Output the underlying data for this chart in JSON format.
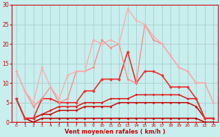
{
  "xlabel": "Vent moyen/en rafales ( km/h )",
  "xlim": [
    -0.5,
    23.5
  ],
  "ylim": [
    0,
    30
  ],
  "yticks": [
    0,
    5,
    10,
    15,
    20,
    25,
    30
  ],
  "xticks": [
    0,
    1,
    2,
    3,
    4,
    5,
    6,
    7,
    8,
    9,
    10,
    11,
    12,
    13,
    14,
    15,
    16,
    17,
    18,
    19,
    20,
    21,
    22,
    23
  ],
  "background_color": "#c8eeee",
  "grid_color": "#aadddd",
  "series": [
    {
      "x": [
        0,
        1,
        2,
        3,
        4,
        5,
        6,
        7,
        8,
        9,
        10,
        11,
        12,
        13,
        14,
        15,
        16,
        17,
        18,
        19,
        20,
        21,
        22,
        23
      ],
      "y": [
        6,
        1,
        0,
        1,
        1,
        1,
        1,
        1,
        1,
        1,
        1,
        1,
        1,
        1,
        1,
        1,
        1,
        1,
        1,
        1,
        1,
        1,
        0,
        0
      ],
      "color": "#bb0000",
      "lw": 1.2,
      "marker": "D",
      "ms": 2.0
    },
    {
      "x": [
        0,
        1,
        2,
        3,
        4,
        5,
        6,
        7,
        8,
        9,
        10,
        11,
        12,
        13,
        14,
        15,
        16,
        17,
        18,
        19,
        20,
        21,
        22,
        23
      ],
      "y": [
        6,
        1,
        1,
        2,
        2,
        3,
        3,
        3,
        4,
        4,
        4,
        4,
        5,
        5,
        5,
        5,
        5,
        5,
        5,
        5,
        5,
        4,
        1,
        1
      ],
      "color": "#cc1111",
      "lw": 1.2,
      "marker": "D",
      "ms": 2.0
    },
    {
      "x": [
        0,
        1,
        2,
        3,
        4,
        5,
        6,
        7,
        8,
        9,
        10,
        11,
        12,
        13,
        14,
        15,
        16,
        17,
        18,
        19,
        20,
        21,
        22,
        23
      ],
      "y": [
        6,
        1,
        1,
        2,
        3,
        4,
        4,
        4,
        5,
        5,
        5,
        6,
        6,
        6,
        7,
        7,
        7,
        7,
        7,
        7,
        6,
        6,
        1,
        1
      ],
      "color": "#dd2020",
      "lw": 1.2,
      "marker": "D",
      "ms": 2.0
    },
    {
      "x": [
        0,
        1,
        2,
        3,
        4,
        5,
        6,
        7,
        8,
        9,
        10,
        11,
        12,
        13,
        14,
        15,
        16,
        17,
        18,
        19,
        20,
        21,
        22,
        23
      ],
      "y": [
        6,
        1,
        1,
        6,
        6,
        5,
        5,
        5,
        8,
        8,
        11,
        11,
        11,
        18,
        10,
        13,
        13,
        12,
        9,
        9,
        9,
        6,
        1,
        1
      ],
      "color": "#ee3333",
      "lw": 1.3,
      "marker": "D",
      "ms": 2.5
    },
    {
      "x": [
        0,
        1,
        2,
        3,
        4,
        5,
        6,
        7,
        8,
        9,
        10,
        11,
        12,
        13,
        14,
        15,
        16,
        17,
        18,
        19,
        20,
        21,
        22,
        23
      ],
      "y": [
        13,
        8,
        4,
        6,
        9,
        5,
        6,
        13,
        13,
        14,
        21,
        19,
        20,
        11,
        10,
        25,
        21,
        20,
        17,
        14,
        13,
        10,
        10,
        5
      ],
      "color": "#ff8888",
      "lw": 1.0,
      "marker": "D",
      "ms": 2.0
    },
    {
      "x": [
        0,
        1,
        2,
        3,
        4,
        5,
        6,
        7,
        8,
        9,
        10,
        11,
        12,
        13,
        14,
        15,
        16,
        17,
        18,
        19,
        20,
        21,
        22,
        23
      ],
      "y": [
        13,
        8,
        5,
        14,
        9,
        6,
        12,
        13,
        13,
        21,
        20,
        21,
        20,
        29,
        26,
        25,
        22,
        20,
        17,
        14,
        13,
        10,
        10,
        5
      ],
      "color": "#ffaaaa",
      "lw": 1.0,
      "marker": "D",
      "ms": 2.0
    }
  ]
}
